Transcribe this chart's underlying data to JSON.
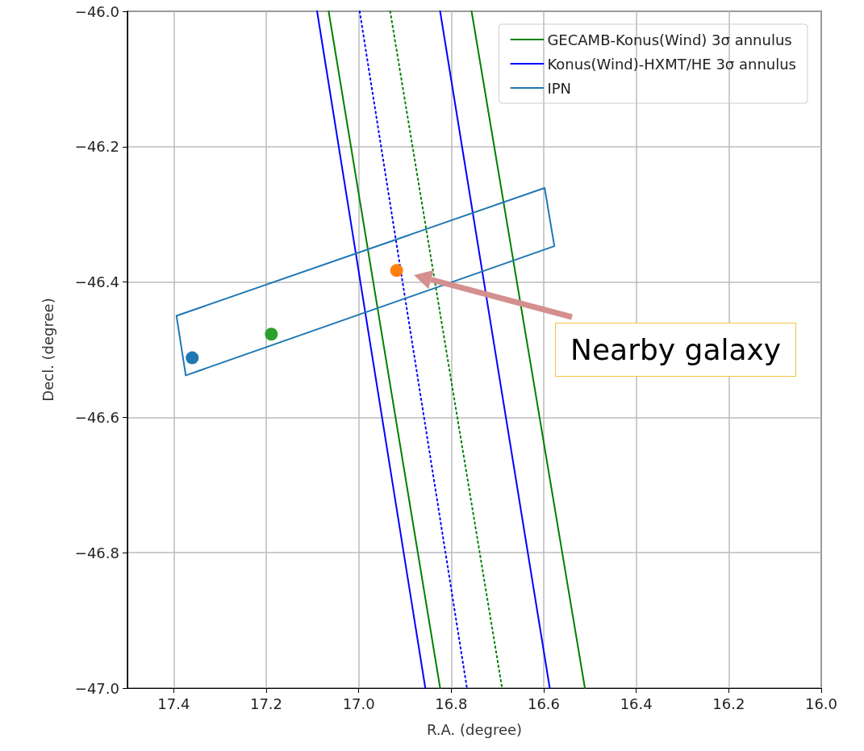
{
  "chart_data": {
    "type": "line",
    "xlabel": "R.A. (degree)",
    "ylabel": "Decl. (degree)",
    "xlim": [
      17.5,
      16.0
    ],
    "ylim": [
      -47.0,
      -46.0
    ],
    "xticks": [
      17.4,
      17.2,
      {
        "value": 17.0,
        "label": "17.0"
      },
      16.8,
      16.6,
      16.4,
      16.2,
      {
        "value": 16.0,
        "label": "16.0"
      }
    ],
    "yticks": [
      {
        "value": -47.0,
        "label": "−47.0"
      },
      {
        "value": -46.8,
        "label": "−46.8"
      },
      {
        "value": -46.6,
        "label": "−46.6"
      },
      {
        "value": -46.4,
        "label": "−46.4"
      },
      {
        "value": -46.2,
        "label": "−46.2"
      },
      {
        "value": -46.0,
        "label": "−46.0"
      }
    ],
    "grid": true,
    "legend": "top right",
    "marker": "none",
    "series": [
      {
        "name": "GECAMB-Konus(Wind) 3σ annulus",
        "color": "#008000",
        "x": [
          17.065,
          16.824,
          null,
          16.756,
          16.511
        ],
        "values": [
          -46.0,
          -47.0,
          null,
          -46.0,
          -47.0
        ]
      },
      {
        "color": "#008000",
        "line_style": "dotted",
        "x": [
          16.932,
          16.69
        ],
        "values": [
          -46.0,
          -47.0
        ]
      },
      {
        "name": "Konus(Wind)-HXMT/HE 3σ annulus",
        "color": "#0000ff",
        "x": [
          17.09,
          16.856,
          null,
          16.824,
          16.587
        ],
        "values": [
          -46.0,
          -47.0,
          null,
          -46.0,
          -47.0
        ]
      },
      {
        "color": "#0000ff",
        "line_style": "dotted",
        "x": [
          16.998,
          16.766
        ],
        "values": [
          -46.0,
          -47.0
        ]
      },
      {
        "name": "IPN",
        "color": "#1f77b4",
        "x": [
          17.394,
          16.598,
          16.577,
          null,
          17.394,
          17.374,
          16.577
        ],
        "values": [
          -46.45,
          -46.261,
          -46.347,
          null,
          -46.45,
          -46.538,
          -46.347
        ]
      },
      {
        "type": "scatter",
        "marker": "circle",
        "color": "#1f77b4",
        "x": [
          17.36
        ],
        "values": [
          -46.512
        ]
      },
      {
        "type": "scatter",
        "marker": "circle",
        "color": "#2ca02c",
        "x": [
          17.189
        ],
        "values": [
          -46.477
        ]
      },
      {
        "type": "scatter",
        "marker": "circle",
        "color": "#ff7f0e",
        "x": [
          16.918
        ],
        "values": [
          -46.383
        ]
      }
    ],
    "annotations": [
      "Nearby galaxy"
    ]
  }
}
